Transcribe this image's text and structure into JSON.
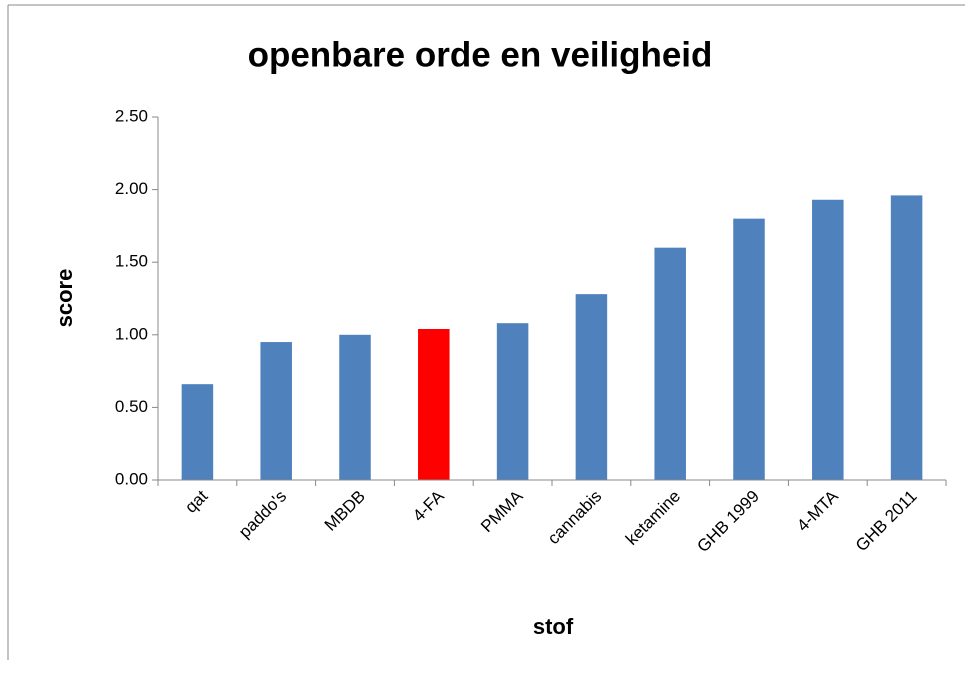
{
  "chart_data": {
    "type": "bar",
    "title": "openbare orde en veiligheid",
    "x_label": "stof",
    "y_label": "score",
    "categories": [
      "qat",
      "paddo's",
      "MBDB",
      "4-FA",
      "PMMA",
      "cannabis",
      "ketamine",
      "GHB 1999",
      "4-MTA",
      "GHB 2011"
    ],
    "values": [
      0.66,
      0.95,
      1.0,
      1.04,
      1.08,
      1.28,
      1.6,
      1.8,
      1.93,
      1.96
    ],
    "colors": [
      "#4f81bd",
      "#4f81bd",
      "#4f81bd",
      "#ff0000",
      "#4f81bd",
      "#4f81bd",
      "#4f81bd",
      "#4f81bd",
      "#4f81bd",
      "#4f81bd"
    ],
    "ylim": [
      0,
      2.5
    ],
    "yticks": [
      {
        "value": 0,
        "label": "0.00"
      },
      {
        "value": 0.5,
        "label": "0.50"
      },
      {
        "value": 1,
        "label": "1.00"
      },
      {
        "value": 1.5,
        "label": "1.50"
      },
      {
        "value": 2,
        "label": "2.00"
      },
      {
        "value": 2.5,
        "label": "2.50"
      }
    ],
    "grid": false
  }
}
